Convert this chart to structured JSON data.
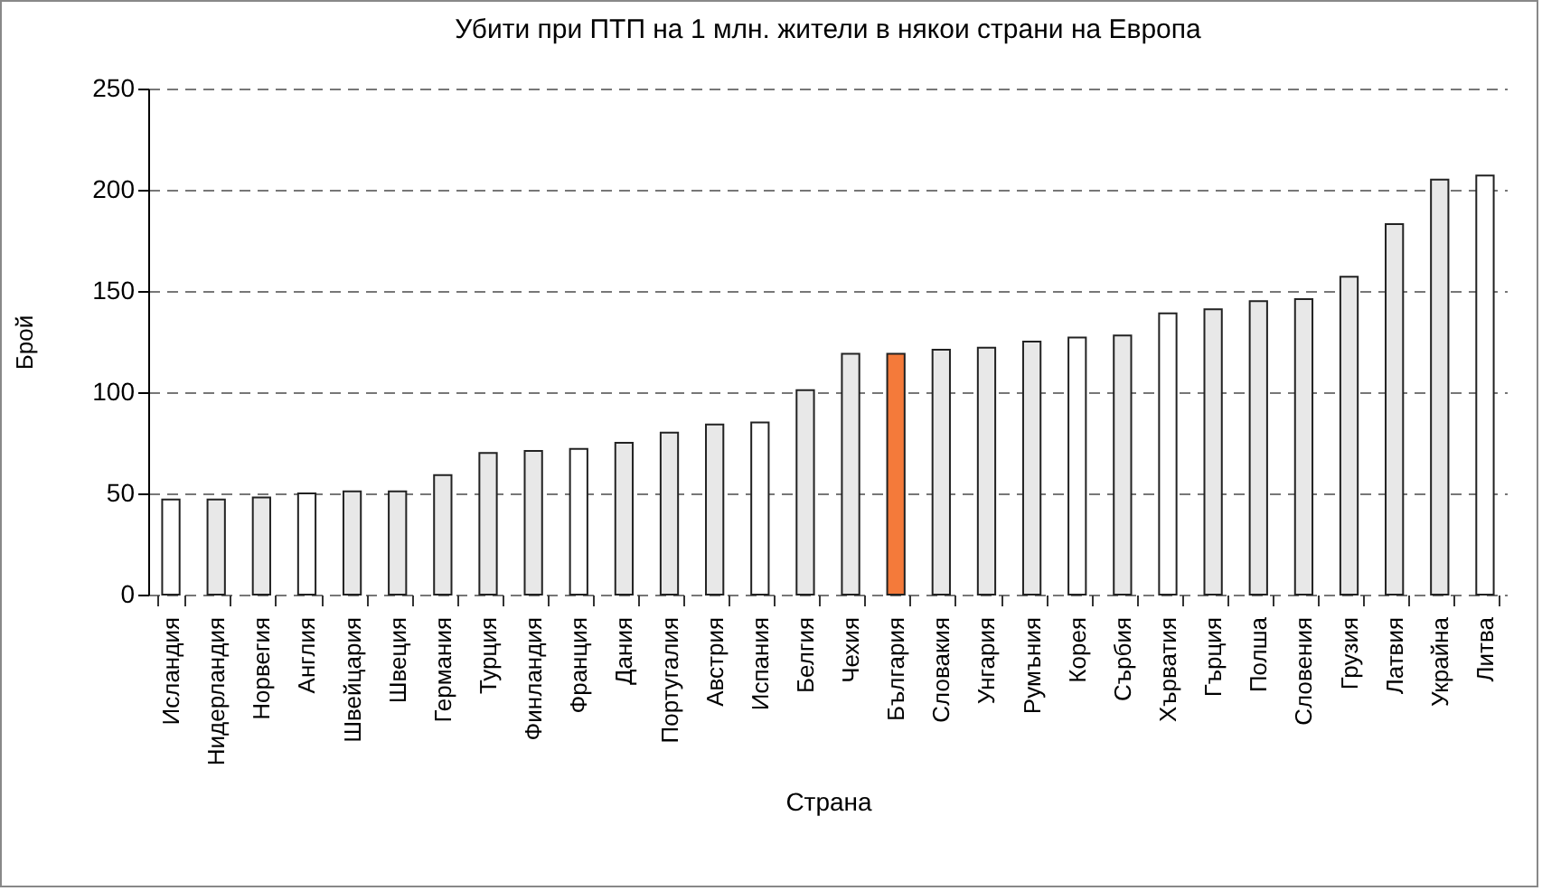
{
  "chart_data": {
    "type": "bar",
    "title": "Убити при ПТП на 1 млн. жители в някои страни на Европа",
    "xlabel": "Страна",
    "ylabel": "Брой",
    "categories": [
      "Исландия",
      "Нидерландия",
      "Норвегия",
      "Англия",
      "Швейцария",
      "Швеция",
      "Германия",
      "Турция",
      "Финландия",
      "Франция",
      "Дания",
      "Португалия",
      "Австрия",
      "Испания",
      "Белгия",
      "Чехия",
      "България",
      "Словакия",
      "Унгария",
      "Румъния",
      "Корея",
      "Сърбия",
      "Хърватия",
      "Гърция",
      "Полша",
      "Словения",
      "Грузия",
      "Латвия",
      "Украйна",
      "Литва"
    ],
    "values": [
      47,
      47,
      48,
      50,
      51,
      51,
      59,
      70,
      71,
      72,
      75,
      80,
      84,
      85,
      101,
      119,
      119,
      121,
      122,
      125,
      127,
      128,
      139,
      141,
      145,
      146,
      157,
      183,
      205,
      207
    ],
    "colors": [
      "#ffffff",
      "#e8e8e8",
      "#e8e8e8",
      "#ffffff",
      "#e8e8e8",
      "#e8e8e8",
      "#e8e8e8",
      "#e8e8e8",
      "#e8e8e8",
      "#ffffff",
      "#e8e8e8",
      "#e8e8e8",
      "#e8e8e8",
      "#ffffff",
      "#e8e8e8",
      "#e8e8e8",
      "#f47a3a",
      "#e8e8e8",
      "#e8e8e8",
      "#e8e8e8",
      "#ffffff",
      "#e8e8e8",
      "#ffffff",
      "#e8e8e8",
      "#e8e8e8",
      "#e8e8e8",
      "#e8e8e8",
      "#e8e8e8",
      "#e8e8e8",
      "#ffffff"
    ],
    "ylim": [
      0,
      250
    ],
    "yticks": [
      0,
      50,
      100,
      150,
      200,
      250
    ],
    "grid": "y"
  }
}
